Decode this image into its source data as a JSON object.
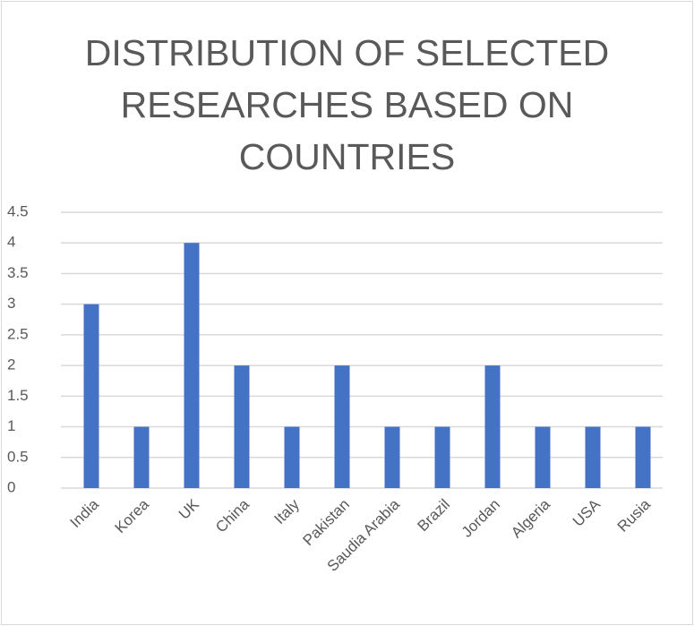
{
  "chart_data": {
    "type": "bar",
    "title": "DISTRIBUTION OF SELECTED RESEARCHES BASED ON COUNTRIES",
    "categories": [
      "India",
      "Korea",
      "UK",
      "China",
      "Italy",
      "Pakistan",
      "Saudia Arabia",
      "Brazil",
      "Jordan",
      "Algeria",
      "USA",
      "Rusia"
    ],
    "values": [
      3,
      1,
      4,
      2,
      1,
      2,
      1,
      1,
      2,
      1,
      1,
      1
    ],
    "color": "#4472c4",
    "ylim": [
      0,
      4.5
    ],
    "yticks": [
      0,
      0.5,
      1,
      1.5,
      2,
      2.5,
      3,
      3.5,
      4,
      4.5
    ],
    "grid": true
  }
}
